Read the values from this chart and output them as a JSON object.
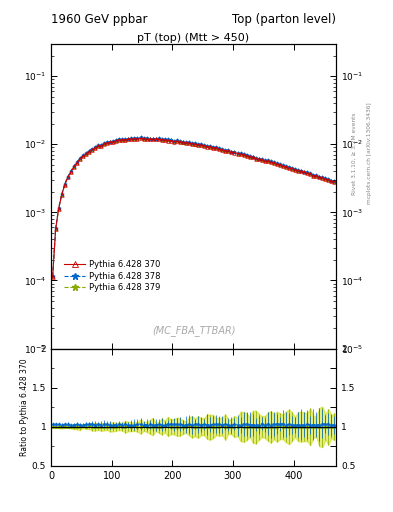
{
  "title_left": "1960 GeV ppbar",
  "title_right": "Top (parton level)",
  "plot_title": "pT (top) (Mtt > 450)",
  "watermark": "(MC_FBA_TTBAR)",
  "right_label_1": "Rivet 3.1.10, ≥ 3.2M events",
  "right_label_2": "mcplots.cern.ch [arXiv:1306.3436]",
  "ylabel_ratio": "Ratio to Pythia 6.428 370",
  "xlim": [
    0,
    470
  ],
  "ylim_main": [
    1e-05,
    0.3
  ],
  "ylim_ratio": [
    0.5,
    2.0
  ],
  "series": [
    {
      "label": "Pythia 6.428 370",
      "color": "#cc0000",
      "marker": "^",
      "linestyle": "-"
    },
    {
      "label": "Pythia 6.428 378",
      "color": "#0066cc",
      "marker": "*",
      "linestyle": "--"
    },
    {
      "label": "Pythia 6.428 379",
      "color": "#88aa00",
      "marker": "*",
      "linestyle": "--"
    }
  ],
  "bin_edges": [
    0,
    5,
    10,
    15,
    20,
    25,
    30,
    35,
    40,
    45,
    50,
    55,
    60,
    65,
    70,
    75,
    80,
    85,
    90,
    95,
    100,
    105,
    110,
    115,
    120,
    125,
    130,
    135,
    140,
    145,
    150,
    155,
    160,
    165,
    170,
    175,
    180,
    185,
    190,
    195,
    200,
    205,
    210,
    215,
    220,
    225,
    230,
    235,
    240,
    245,
    250,
    255,
    260,
    265,
    270,
    275,
    280,
    285,
    290,
    295,
    300,
    305,
    310,
    315,
    320,
    325,
    330,
    335,
    340,
    345,
    350,
    355,
    360,
    365,
    370,
    375,
    380,
    385,
    390,
    395,
    400,
    405,
    410,
    415,
    420,
    425,
    430,
    435,
    440,
    445,
    450,
    455,
    460,
    465,
    470
  ],
  "bg_color": "#ffffff"
}
